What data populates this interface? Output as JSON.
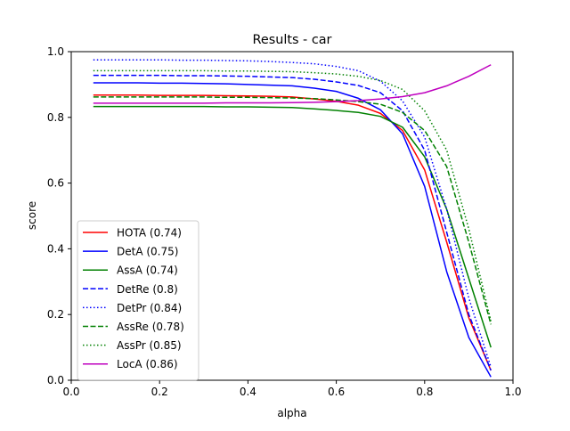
{
  "chart_data": {
    "type": "line",
    "title": "Results - car",
    "xlabel": "alpha",
    "ylabel": "score",
    "xlim": [
      0.0,
      1.0
    ],
    "ylim": [
      0.0,
      1.0
    ],
    "xticks": [
      "0.0",
      "0.2",
      "0.4",
      "0.6",
      "0.8",
      "1.0"
    ],
    "yticks": [
      "0.0",
      "0.2",
      "0.4",
      "0.6",
      "0.8",
      "1.0"
    ],
    "grid": false,
    "legend_position": "lower-left",
    "x": [
      0.05,
      0.1,
      0.15,
      0.2,
      0.25,
      0.3,
      0.35,
      0.4,
      0.45,
      0.5,
      0.55,
      0.6,
      0.65,
      0.7,
      0.75,
      0.8,
      0.85,
      0.9,
      0.95
    ],
    "series": [
      {
        "name": "HOTA (0.74)",
        "color": "#ff0000",
        "dash": "solid",
        "values": [
          0.868,
          0.868,
          0.868,
          0.867,
          0.867,
          0.867,
          0.866,
          0.865,
          0.864,
          0.862,
          0.856,
          0.849,
          0.837,
          0.812,
          0.76,
          0.64,
          0.42,
          0.19,
          0.03
        ]
      },
      {
        "name": "DetA (0.75)",
        "color": "#0000ff",
        "dash": "solid",
        "values": [
          0.905,
          0.905,
          0.905,
          0.904,
          0.904,
          0.903,
          0.902,
          0.9,
          0.898,
          0.896,
          0.889,
          0.879,
          0.858,
          0.823,
          0.75,
          0.59,
          0.33,
          0.13,
          0.01
        ]
      },
      {
        "name": "AssA (0.74)",
        "color": "#008000",
        "dash": "solid",
        "values": [
          0.833,
          0.833,
          0.833,
          0.833,
          0.833,
          0.833,
          0.832,
          0.832,
          0.831,
          0.83,
          0.826,
          0.821,
          0.815,
          0.803,
          0.77,
          0.68,
          0.52,
          0.31,
          0.1
        ]
      },
      {
        "name": "DetRe (0.8)",
        "color": "#0000ff",
        "dash": "dashed",
        "values": [
          0.928,
          0.928,
          0.928,
          0.928,
          0.927,
          0.927,
          0.926,
          0.925,
          0.923,
          0.921,
          0.916,
          0.908,
          0.897,
          0.875,
          0.82,
          0.7,
          0.45,
          0.2,
          0.03
        ]
      },
      {
        "name": "DetPr (0.84)",
        "color": "#0000ff",
        "dash": "dotted",
        "values": [
          0.975,
          0.975,
          0.975,
          0.975,
          0.974,
          0.974,
          0.973,
          0.972,
          0.97,
          0.967,
          0.963,
          0.955,
          0.942,
          0.91,
          0.85,
          0.74,
          0.52,
          0.25,
          0.04
        ]
      },
      {
        "name": "AssRe (0.78)",
        "color": "#008000",
        "dash": "dashed",
        "values": [
          0.862,
          0.862,
          0.862,
          0.862,
          0.862,
          0.862,
          0.861,
          0.861,
          0.86,
          0.859,
          0.857,
          0.853,
          0.848,
          0.84,
          0.815,
          0.76,
          0.65,
          0.42,
          0.17
        ]
      },
      {
        "name": "AssPr (0.85)",
        "color": "#008000",
        "dash": "dotted",
        "values": [
          0.942,
          0.942,
          0.942,
          0.942,
          0.942,
          0.942,
          0.941,
          0.941,
          0.94,
          0.939,
          0.936,
          0.932,
          0.925,
          0.912,
          0.885,
          0.82,
          0.7,
          0.46,
          0.18
        ]
      },
      {
        "name": "LocA (0.86)",
        "color": "#bf00bf",
        "dash": "solid",
        "values": [
          0.843,
          0.843,
          0.843,
          0.843,
          0.843,
          0.843,
          0.844,
          0.844,
          0.844,
          0.845,
          0.846,
          0.848,
          0.851,
          0.856,
          0.863,
          0.875,
          0.896,
          0.925,
          0.96
        ]
      }
    ]
  }
}
